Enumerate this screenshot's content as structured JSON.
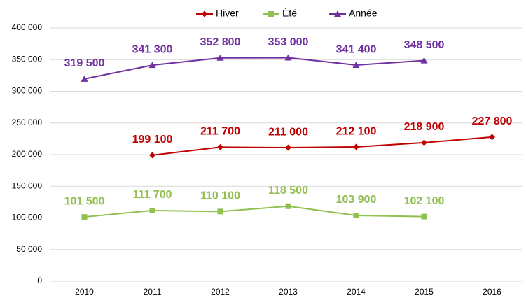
{
  "chart_data": {
    "type": "line",
    "categories": [
      "2010",
      "2011",
      "2012",
      "2013",
      "2014",
      "2015",
      "2016"
    ],
    "series": [
      {
        "name": "Hiver",
        "color": "#c00000",
        "marker": "diamond",
        "values": [
          null,
          199100,
          211700,
          211000,
          212100,
          218900,
          227800
        ],
        "value_labels": [
          null,
          "199 100",
          "211 700",
          "211 000",
          "212 100",
          "218 900",
          "227 800"
        ]
      },
      {
        "name": "Été",
        "color": "#92c050",
        "marker": "square",
        "values": [
          101500,
          111700,
          110100,
          118500,
          103900,
          102100,
          null
        ],
        "value_labels": [
          "101 500",
          "111 700",
          "110 100",
          "118 500",
          "103 900",
          "102 100",
          null
        ]
      },
      {
        "name": "Année",
        "color": "#7030a0",
        "marker": "triangle",
        "values": [
          319500,
          341300,
          352800,
          353000,
          341400,
          348500,
          null
        ],
        "value_labels": [
          "319 500",
          "341 300",
          "352 800",
          "353 000",
          "341 400",
          "348 500",
          null
        ]
      }
    ],
    "ylim": [
      0,
      400000
    ],
    "yticks": [
      0,
      {
        "value": 50000,
        "label": "50 000"
      },
      {
        "value": 100000,
        "label": "100 000"
      },
      {
        "value": 150000,
        "label": "150 000"
      },
      {
        "value": 200000,
        "label": "200 000"
      },
      {
        "value": 250000,
        "label": "250 000"
      },
      {
        "value": 300000,
        "label": "300 000"
      },
      {
        "value": 350000,
        "label": "350 000"
      },
      {
        "value": 400000,
        "label": "400 000"
      }
    ],
    "grid": true,
    "legend": "top"
  }
}
